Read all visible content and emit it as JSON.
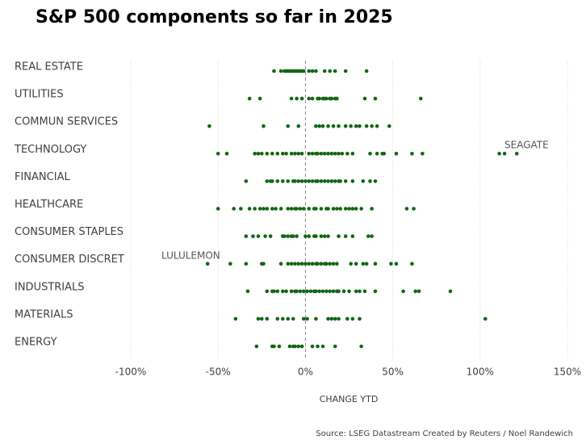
{
  "chart_data": {
    "type": "strip",
    "title": "S&P 500 components so far in 2025",
    "x_label": "CHANGE YTD",
    "source": "Source: LSEG Datastream  Created by Reuters / Noel Randewich",
    "color": "#126612",
    "grid": true,
    "xlim": [
      -100,
      150
    ],
    "xticks": [
      {
        "value": -100,
        "label": "-100%"
      },
      {
        "value": -50,
        "label": "-50%"
      },
      {
        "value": 0,
        "label": "0%"
      },
      {
        "value": 50,
        "label": "50%"
      },
      {
        "value": 100,
        "label": "100%"
      },
      {
        "value": 150,
        "label": "150%"
      }
    ],
    "categories": [
      "REAL ESTATE",
      "UTILITIES",
      "COMMUN SERVICES",
      "TECHNOLOGY",
      "FINANCIAL",
      "HEALTHCARE",
      "CONSUMER STAPLES",
      "CONSUMER DISCRET",
      "INDUSTRIALS",
      "MATERIALS",
      "ENERGY"
    ],
    "values": [
      [
        -18,
        -14,
        -12,
        -11,
        -10,
        -9,
        -8,
        -7,
        -6,
        -5,
        -4,
        -3,
        -2,
        -1,
        2,
        4,
        6,
        11,
        14,
        17,
        23,
        35
      ],
      [
        -32,
        -26,
        -8,
        -5,
        -2,
        2,
        4,
        7,
        8,
        10,
        11,
        12,
        14,
        15,
        17,
        18,
        34,
        40,
        66
      ],
      [
        -55,
        -24,
        -10,
        -4,
        6,
        8,
        10,
        13,
        16,
        19,
        23,
        26,
        29,
        31,
        35,
        38,
        41,
        48
      ],
      [
        -50,
        -45,
        -29,
        -27,
        -25,
        -22,
        -19,
        -16,
        -13,
        -11,
        -8,
        -6,
        -4,
        -2,
        2,
        4,
        6,
        7,
        9,
        11,
        13,
        15,
        17,
        19,
        21,
        24,
        27,
        37,
        41,
        44,
        45,
        52,
        61,
        67,
        111,
        114,
        121
      ],
      [
        -34,
        -22,
        -20,
        -19,
        -16,
        -13,
        -10,
        -7,
        -6,
        -4,
        -2,
        0,
        2,
        4,
        6,
        7,
        9,
        11,
        13,
        15,
        17,
        19,
        20,
        23,
        27,
        33,
        37,
        40
      ],
      [
        -50,
        -41,
        -37,
        -32,
        -29,
        -26,
        -24,
        -22,
        -19,
        -17,
        -14,
        -10,
        -8,
        -6,
        -5,
        -3,
        -1,
        2,
        5,
        6,
        9,
        12,
        13,
        16,
        18,
        20,
        23,
        25,
        27,
        29,
        32,
        38,
        58,
        62
      ],
      [
        -34,
        -30,
        -27,
        -23,
        -20,
        -13,
        -12,
        -10,
        -8,
        -7,
        -5,
        0,
        2,
        5,
        6,
        9,
        11,
        13,
        19,
        23,
        27,
        36,
        38
      ],
      [
        -56,
        -43,
        -34,
        -25,
        -24,
        -14,
        -10,
        -8,
        -6,
        -4,
        -2,
        0,
        2,
        4,
        6,
        7,
        9,
        11,
        12,
        14,
        16,
        18,
        26,
        29,
        33,
        35,
        40,
        49,
        52,
        61
      ],
      [
        -33,
        -22,
        -19,
        -18,
        -16,
        -13,
        -11,
        -8,
        -6,
        -5,
        -3,
        -1,
        1,
        3,
        5,
        6,
        8,
        10,
        12,
        14,
        16,
        18,
        19,
        22,
        25,
        29,
        31,
        34,
        40,
        56,
        63,
        65,
        83
      ],
      [
        -40,
        -27,
        -25,
        -22,
        -16,
        -13,
        -10,
        -7,
        -1,
        1,
        6,
        13,
        15,
        17,
        19,
        24,
        27,
        31,
        103
      ],
      [
        -28,
        -19,
        -18,
        -15,
        -9,
        -7,
        -6,
        -4,
        -2,
        4,
        7,
        10,
        17,
        32
      ]
    ],
    "annotations": [
      "SEAGATE",
      "LULULEMON"
    ]
  }
}
